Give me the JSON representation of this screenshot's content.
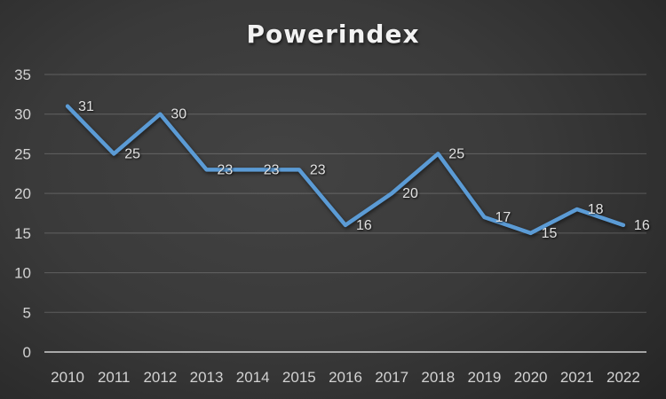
{
  "title": "Powerindex",
  "colors": {
    "line": "#5b9bd5",
    "title_text": "#f2f2f2",
    "axis_text": "#d2d2d2",
    "data_label_text": "#e2e2e2",
    "gridline": "rgba(255,255,255,0.20)",
    "axis_line": "rgba(255,255,255,0.58)",
    "background_center": "#434343",
    "background_edge": "#232323"
  },
  "chart_data": {
    "type": "line",
    "title": "Powerindex",
    "categories": [
      "2010",
      "2011",
      "2012",
      "2013",
      "2014",
      "2015",
      "2016",
      "2017",
      "2018",
      "2019",
      "2020",
      "2021",
      "2022"
    ],
    "values": [
      31,
      25,
      30,
      23,
      23,
      23,
      16,
      20,
      25,
      17,
      15,
      18,
      16
    ],
    "xlabel": "",
    "ylabel": "",
    "ylim": [
      0,
      35
    ],
    "yticks": [
      0,
      5,
      10,
      15,
      20,
      25,
      30,
      35
    ],
    "grid": true,
    "legend": false,
    "data_labels": true,
    "data_label_position": "right"
  }
}
